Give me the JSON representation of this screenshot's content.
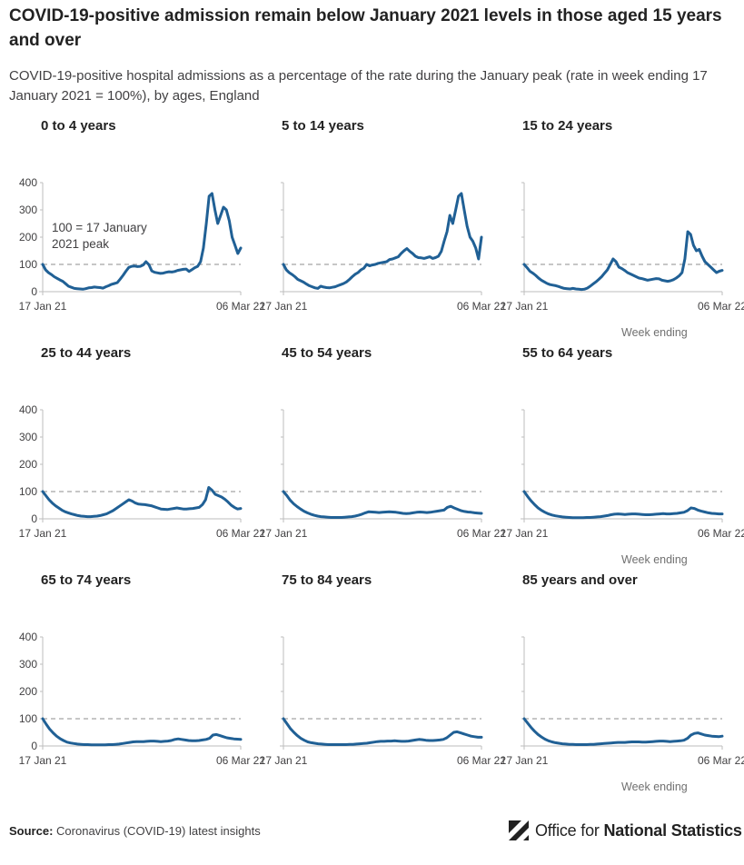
{
  "header": {
    "title": "COVID-19-positive admission remain below January 2021 levels in those aged 15 years and over",
    "subtitle": "COVID-19-positive hospital admissions as a percentage of the rate during the January peak (rate in week ending 17 January 2021 = 100%), by ages, England"
  },
  "week_ending_label": "Week ending",
  "footer": {
    "source_label": "Source:",
    "source_text": "Coronavirus (COVID-19) latest insights",
    "logo_text_regular": "Office for ",
    "logo_text_bold": "National Statistics"
  },
  "colors": {
    "line": "#206095",
    "reference": "#b3b3b3",
    "axis": "#bebebe"
  },
  "chart_data": {
    "type": "line",
    "small_multiples": true,
    "x_start_label": "17 Jan 21",
    "x_end_label": "06 Mar 22",
    "x_range": [
      "2021-01-17",
      "2022-03-06"
    ],
    "ylim": [
      0,
      400
    ],
    "yticks": [
      0,
      100,
      200,
      300,
      400
    ],
    "reference_line": 100,
    "annotation": {
      "panel": 0,
      "text_line1": "100 = 17 January",
      "text_line2": "2021 peak"
    },
    "panels": [
      {
        "title": "0 to 4 years",
        "values": [
          100,
          80,
          70,
          63,
          55,
          49,
          43,
          38,
          29,
          20,
          16,
          12,
          11,
          10,
          9,
          11,
          14,
          15,
          17,
          16,
          15,
          13,
          18,
          22,
          27,
          30,
          33,
          46,
          60,
          75,
          89,
          93,
          94,
          92,
          93,
          98,
          110,
          99,
          76,
          71,
          69,
          67,
          68,
          71,
          73,
          72,
          74,
          78,
          80,
          82,
          83,
          74,
          81,
          88,
          93,
          110,
          160,
          250,
          350,
          360,
          300,
          250,
          280,
          310,
          300,
          260,
          200,
          170,
          140,
          160
        ]
      },
      {
        "title": "5 to 14 years",
        "values": [
          100,
          80,
          70,
          63,
          55,
          45,
          40,
          35,
          28,
          22,
          18,
          14,
          12,
          20,
          17,
          15,
          14,
          16,
          18,
          22,
          26,
          30,
          36,
          45,
          55,
          64,
          70,
          80,
          86,
          100,
          95,
          98,
          100,
          104,
          106,
          108,
          110,
          118,
          120,
          124,
          128,
          140,
          150,
          158,
          148,
          140,
          130,
          125,
          124,
          122,
          125,
          128,
          122,
          125,
          130,
          148,
          185,
          220,
          280,
          250,
          300,
          350,
          360,
          300,
          240,
          200,
          185,
          160,
          120,
          200
        ]
      },
      {
        "title": "15 to 24 years",
        "values": [
          100,
          88,
          75,
          68,
          60,
          50,
          42,
          36,
          30,
          26,
          24,
          22,
          19,
          15,
          12,
          11,
          10,
          12,
          10,
          9,
          8,
          9,
          13,
          20,
          28,
          36,
          45,
          55,
          68,
          80,
          100,
          120,
          110,
          90,
          85,
          78,
          70,
          65,
          60,
          55,
          50,
          48,
          45,
          42,
          44,
          46,
          48,
          47,
          42,
          40,
          38,
          40,
          44,
          50,
          58,
          70,
          120,
          220,
          210,
          170,
          150,
          155,
          130,
          110,
          100,
          90,
          80,
          70,
          75,
          78
        ]
      },
      {
        "title": "25 to 44 years",
        "values": [
          100,
          85,
          70,
          58,
          48,
          40,
          32,
          26,
          22,
          18,
          15,
          12,
          10,
          9,
          8,
          8,
          9,
          10,
          12,
          15,
          18,
          24,
          30,
          38,
          46,
          54,
          62,
          70,
          65,
          58,
          54,
          53,
          52,
          50,
          48,
          44,
          40,
          36,
          35,
          34,
          36,
          38,
          40,
          38,
          36,
          36,
          37,
          38,
          40,
          42,
          52,
          70,
          115,
          105,
          90,
          85,
          80,
          72,
          62,
          50,
          42,
          36,
          38
        ]
      },
      {
        "title": "45 to 54 years",
        "values": [
          100,
          85,
          68,
          55,
          45,
          36,
          28,
          22,
          17,
          13,
          10,
          8,
          7,
          6,
          5,
          5,
          5,
          5,
          6,
          7,
          8,
          10,
          13,
          17,
          22,
          26,
          25,
          24,
          23,
          24,
          25,
          26,
          25,
          24,
          22,
          20,
          19,
          20,
          22,
          24,
          25,
          24,
          23,
          24,
          26,
          28,
          30,
          32,
          42,
          46,
          40,
          35,
          30,
          27,
          25,
          24,
          22,
          21,
          20
        ]
      },
      {
        "title": "55 to 64 years",
        "values": [
          100,
          82,
          66,
          52,
          40,
          31,
          24,
          18,
          14,
          11,
          9,
          7,
          6,
          5,
          4,
          4,
          4,
          4,
          5,
          5,
          6,
          7,
          8,
          10,
          12,
          15,
          17,
          18,
          17,
          16,
          17,
          18,
          18,
          17,
          16,
          15,
          15,
          16,
          17,
          18,
          19,
          18,
          18,
          19,
          20,
          22,
          24,
          30,
          40,
          38,
          32,
          28,
          25,
          22,
          20,
          19,
          18,
          18
        ]
      },
      {
        "title": "65 to 74 years",
        "values": [
          100,
          80,
          62,
          48,
          36,
          27,
          20,
          14,
          11,
          9,
          7,
          6,
          5,
          5,
          4,
          4,
          4,
          4,
          4,
          5,
          5,
          6,
          7,
          9,
          11,
          13,
          15,
          16,
          16,
          16,
          17,
          18,
          18,
          17,
          16,
          17,
          18,
          20,
          24,
          26,
          24,
          22,
          20,
          19,
          19,
          20,
          22,
          24,
          28,
          40,
          42,
          38,
          34,
          30,
          28,
          26,
          25,
          24
        ]
      },
      {
        "title": "75 to 84 years",
        "values": [
          100,
          82,
          64,
          50,
          38,
          28,
          21,
          15,
          12,
          10,
          8,
          7,
          6,
          5,
          5,
          5,
          5,
          5,
          5,
          6,
          6,
          7,
          8,
          9,
          10,
          12,
          14,
          16,
          17,
          17,
          18,
          18,
          19,
          18,
          17,
          17,
          18,
          20,
          22,
          24,
          23,
          21,
          20,
          20,
          21,
          22,
          24,
          30,
          40,
          50,
          52,
          48,
          44,
          40,
          36,
          34,
          32,
          32
        ]
      },
      {
        "title": "85 years and over",
        "values": [
          100,
          84,
          68,
          54,
          42,
          33,
          25,
          19,
          15,
          12,
          10,
          8,
          7,
          6,
          6,
          5,
          5,
          5,
          5,
          6,
          6,
          7,
          8,
          9,
          10,
          11,
          12,
          13,
          13,
          13,
          14,
          15,
          15,
          15,
          14,
          14,
          15,
          16,
          17,
          18,
          18,
          17,
          16,
          17,
          18,
          19,
          21,
          28,
          40,
          46,
          48,
          44,
          40,
          38,
          36,
          35,
          34,
          36
        ]
      }
    ]
  }
}
